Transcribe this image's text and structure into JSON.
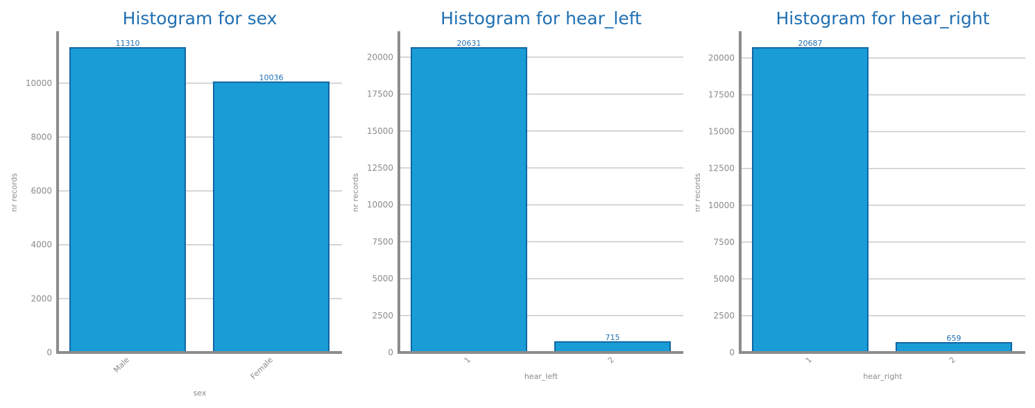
{
  "colors": {
    "bar_fill": "#1a9dd6",
    "bar_edge": "#1165a3",
    "title": "#1f6fb2",
    "grid": "#c8c8c8",
    "axis": "#8c8c8c",
    "tick_text": "#8a8a8a"
  },
  "chart_data": [
    {
      "type": "bar",
      "title": "Histogram for sex",
      "xlabel": "sex",
      "ylabel": "nr records",
      "categories": [
        "Male",
        "Female"
      ],
      "values": [
        11310,
        10036
      ],
      "ylim": [
        0,
        11876
      ],
      "yticks": [
        0,
        2000,
        4000,
        6000,
        8000,
        10000
      ],
      "grid": "horizontal",
      "xtick_rotation": -45
    },
    {
      "type": "bar",
      "title": "Histogram for hear_left",
      "xlabel": "hear_left",
      "ylabel": "nr records",
      "categories": [
        "1",
        "2"
      ],
      "values": [
        20631,
        715
      ],
      "ylim": [
        0,
        21663
      ],
      "yticks": [
        0,
        2500,
        5000,
        7500,
        10000,
        12500,
        15000,
        17500,
        20000
      ],
      "grid": "horizontal",
      "xtick_rotation": -45
    },
    {
      "type": "bar",
      "title": "Histogram for hear_right",
      "xlabel": "hear_right",
      "ylabel": "nr records",
      "categories": [
        "1",
        "2"
      ],
      "values": [
        20687,
        659
      ],
      "ylim": [
        0,
        21721
      ],
      "yticks": [
        0,
        2500,
        5000,
        7500,
        10000,
        12500,
        15000,
        17500,
        20000
      ],
      "grid": "horizontal",
      "xtick_rotation": -45
    }
  ]
}
